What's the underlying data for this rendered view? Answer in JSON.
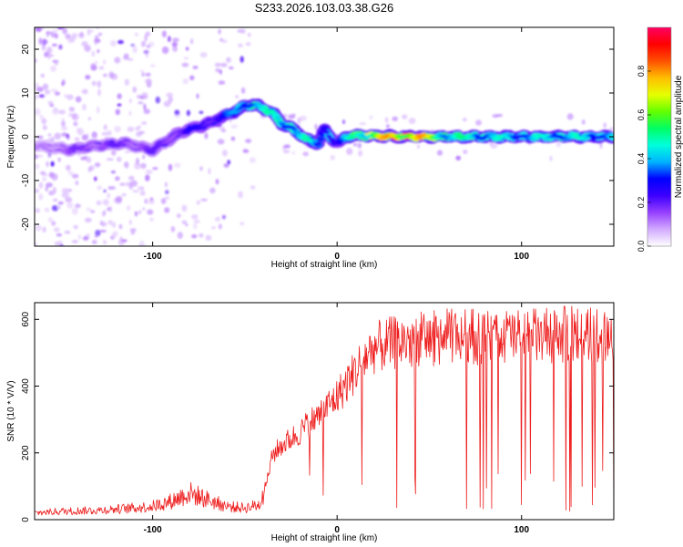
{
  "title": "S233.2026.103.03.38.G26",
  "chart_data": [
    {
      "type": "heatmap",
      "title": "S233.2026.103.03.38.G26",
      "xlabel": "Height of straight line (km)",
      "ylabel": "Frequency (Hz)",
      "xlim": [
        -164,
        150
      ],
      "ylim": [
        -25,
        25
      ],
      "xticks": [
        -100,
        0,
        100
      ],
      "yticks": [
        -20,
        -10,
        0,
        10,
        20
      ],
      "xtick_labels": [
        "-100",
        "0",
        "100"
      ],
      "ytick_labels": [
        "-20",
        "-10",
        "0",
        "10",
        "20"
      ],
      "colorbar": {
        "label": "Normalized spectral amplitude",
        "range": [
          0,
          1
        ],
        "ticks": [
          0,
          0.2,
          0.4,
          0.6,
          0.8
        ],
        "tick_labels": [
          "0.0",
          "0.2",
          "0.4",
          "0.6",
          "0.8"
        ],
        "colormap": [
          "#ffffff",
          "#d2aaff",
          "#9640ff",
          "#3c00ff",
          "#0000ff",
          "#00b4ff",
          "#00ffdc",
          "#00ff64",
          "#64ff00",
          "#e6ff00",
          "#ffbe00",
          "#ff5000",
          "#ff0000",
          "#ff0064"
        ]
      },
      "ridge": {
        "description_points_x": [
          -164,
          -145,
          -130,
          -115,
          -100,
          -85,
          -70,
          -60,
          -50,
          -45,
          -40,
          -35,
          -30,
          -25,
          -20,
          -15,
          -10,
          -7,
          -5,
          0,
          3,
          5,
          10,
          20,
          40,
          60,
          80,
          100,
          120,
          150
        ],
        "description_points_y": [
          -2,
          -3,
          -2,
          -1.5,
          -3,
          1,
          3,
          5,
          7,
          7.5,
          6.5,
          5.5,
          3,
          2,
          0.5,
          -1,
          -1.5,
          1.5,
          0.5,
          -1.5,
          -0.8,
          0,
          0.2,
          0.2,
          0,
          0,
          0,
          0,
          0,
          0
        ],
        "amplitude": [
          0.1,
          0.18,
          0.2,
          0.2,
          0.2,
          0.25,
          0.3,
          0.35,
          0.45,
          0.55,
          0.5,
          0.5,
          0.5,
          0.5,
          0.5,
          0.5,
          0.35,
          0.4,
          0.45,
          0.3,
          0.35,
          0.45,
          0.6,
          0.75,
          0.92,
          0.55,
          0.5,
          0.45,
          0.5,
          0.45
        ]
      }
    },
    {
      "type": "line",
      "xlabel": "Height of straight line (km)",
      "ylabel": "SNR (10 * V/V)",
      "xlim": [
        -164,
        150
      ],
      "ylim": [
        0,
        650
      ],
      "xticks": [
        -100,
        0,
        100
      ],
      "yticks": [
        0,
        200,
        400,
        600
      ],
      "xtick_labels": [
        "-100",
        "0",
        "100"
      ],
      "ytick_labels": [
        "0",
        "200",
        "400",
        "600"
      ],
      "series": [
        {
          "name": "SNR",
          "color": "#ee1c1c",
          "x": [
            -164,
            -150,
            -130,
            -110,
            -100,
            -90,
            -80,
            -70,
            -60,
            -50,
            -42,
            -38,
            -35,
            -30,
            -25,
            -20,
            -15,
            -10,
            -5,
            0,
            5,
            10,
            15,
            20,
            30,
            40,
            50,
            60,
            70,
            80,
            90,
            100,
            110,
            120,
            130,
            140,
            150
          ],
          "y": [
            20,
            25,
            28,
            35,
            40,
            55,
            80,
            60,
            40,
            35,
            45,
            120,
            200,
            230,
            250,
            270,
            300,
            320,
            350,
            380,
            420,
            460,
            500,
            530,
            545,
            555,
            560,
            565,
            570,
            560,
            565,
            570,
            565,
            570,
            575,
            570,
            575
          ]
        }
      ]
    }
  ]
}
